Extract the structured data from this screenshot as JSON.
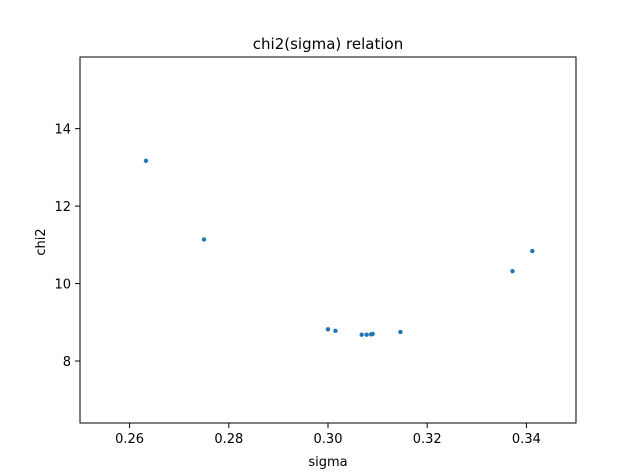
{
  "chart_data": {
    "type": "scatter",
    "title": "chi2(sigma) relation",
    "xlabel": "sigma",
    "ylabel": "chi2",
    "xlim": [
      0.25,
      0.35
    ],
    "ylim": [
      6.4,
      15.85
    ],
    "x_ticks": [
      0.26,
      0.28,
      0.3,
      0.32,
      0.34
    ],
    "x_tick_labels": [
      "0.26",
      "0.28",
      "0.30",
      "0.32",
      "0.34"
    ],
    "y_ticks": [
      8,
      10,
      12,
      14
    ],
    "y_tick_labels": [
      "8",
      "10",
      "12",
      "14"
    ],
    "grid": false,
    "color": "#1f77b4",
    "series": [
      {
        "x": [
          0.2633,
          0.275,
          0.3,
          0.3015,
          0.3068,
          0.3078,
          0.3087,
          0.309,
          0.3146,
          0.3372,
          0.3412
        ],
        "y": [
          13.17,
          11.14,
          8.82,
          8.78,
          8.68,
          8.68,
          8.69,
          8.7,
          8.75,
          10.32,
          10.84
        ]
      }
    ]
  }
}
